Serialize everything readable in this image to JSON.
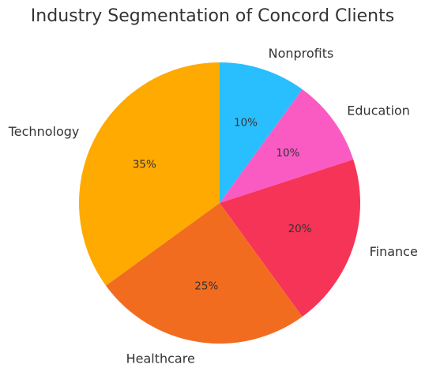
{
  "chart_data": {
    "type": "pie",
    "title": "Industry Segmentation of Concord Clients",
    "start_angle_deg": 90,
    "direction": "clockwise",
    "slices": [
      {
        "label": "Nonprofits",
        "value": 10,
        "value_label": "10%",
        "color": "#29BFFF"
      },
      {
        "label": "Education",
        "value": 10,
        "value_label": "10%",
        "color": "#F95BC3"
      },
      {
        "label": "Finance",
        "value": 20,
        "value_label": "20%",
        "color": "#F63457"
      },
      {
        "label": "Healthcare",
        "value": 25,
        "value_label": "25%",
        "color": "#F26C20"
      },
      {
        "label": "Technology",
        "value": 35,
        "value_label": "35%",
        "color": "#FFAA00"
      }
    ]
  }
}
